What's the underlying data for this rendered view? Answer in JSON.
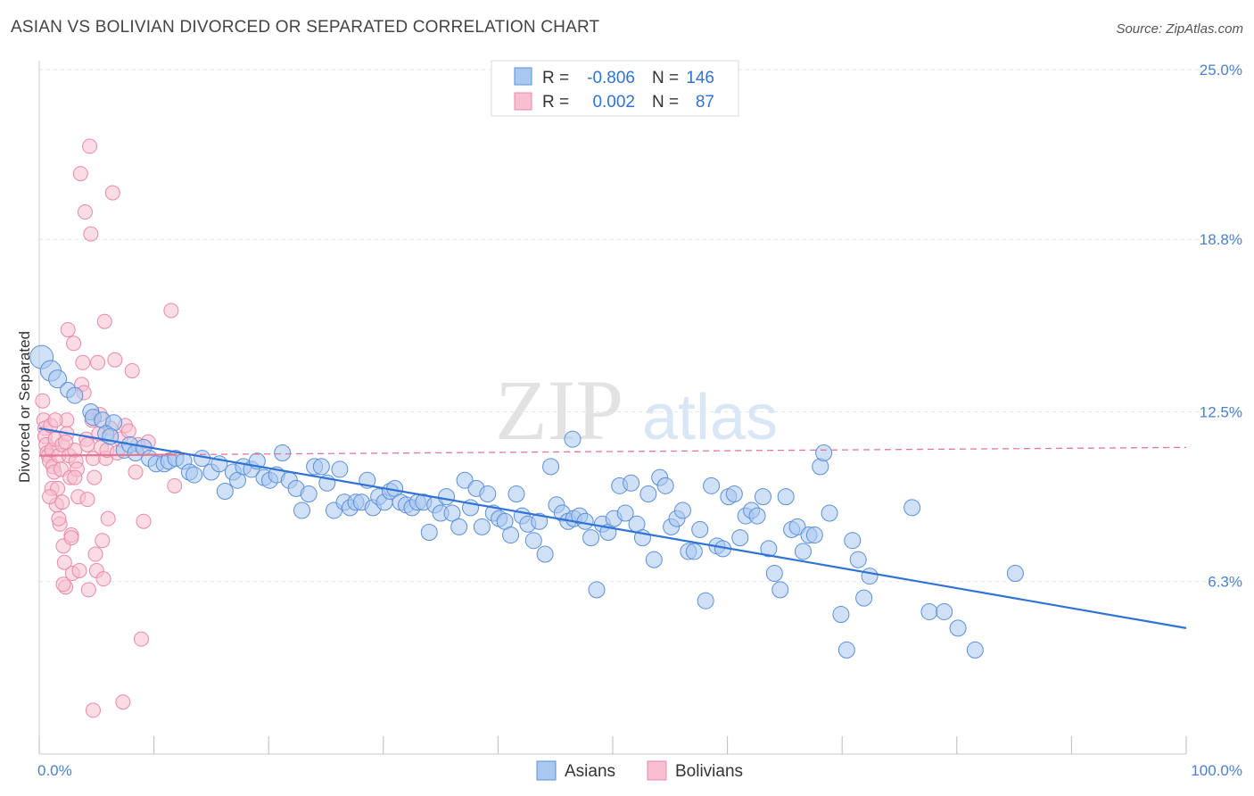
{
  "title": "ASIAN VS BOLIVIAN DIVORCED OR SEPARATED CORRELATION CHART",
  "source": "Source: ZipAtlas.com",
  "watermark": {
    "zip": "ZIP",
    "atlas": "atlas"
  },
  "colors": {
    "asians_fill": "#a9c8f0",
    "asians_stroke": "#5b8fd9",
    "asians_line": "#2f73d4",
    "bolivians_fill": "#f8bfd0",
    "bolivians_stroke": "#e889a8",
    "bolivians_line": "#e07898",
    "tick_text": "#4a7fd4",
    "grid": "#e6e6e6"
  },
  "legend": {
    "rows": [
      {
        "r_label": "R =",
        "r_value": "-0.806",
        "n_label": "N =",
        "n_value": "146"
      },
      {
        "r_label": "R =",
        "r_value": "0.002",
        "n_label": "N =",
        "n_value": "87"
      }
    ]
  },
  "bottom_legend": {
    "asians": "Asians",
    "bolivians": "Bolivians"
  },
  "chart_data": {
    "type": "scatter",
    "xlabel": "",
    "ylabel": "Divorced or Separated",
    "xlim": [
      0,
      100
    ],
    "ylim": [
      0,
      25
    ],
    "y_ticks": [
      {
        "value": 6.3,
        "label": "6.3%"
      },
      {
        "value": 12.5,
        "label": "12.5%"
      },
      {
        "value": 18.8,
        "label": "18.8%"
      },
      {
        "value": 25.0,
        "label": "25.0%"
      }
    ],
    "x_tick_labels": {
      "min": "0.0%",
      "max": "100.0%"
    },
    "x_minor_ticks": [
      0,
      10,
      20,
      30,
      40,
      50,
      60,
      70,
      80,
      90,
      100
    ],
    "grid": true,
    "series": [
      {
        "name": "Asians",
        "R": -0.806,
        "N": 146,
        "trend": {
          "x": [
            0,
            100
          ],
          "y": [
            11.9,
            4.6
          ]
        },
        "points": [
          [
            0.2,
            14.5
          ],
          [
            1.0,
            14.0
          ],
          [
            1.6,
            13.7
          ],
          [
            2.5,
            13.3
          ],
          [
            3.1,
            13.1
          ],
          [
            4.5,
            12.5
          ],
          [
            4.7,
            12.3
          ],
          [
            5.5,
            12.2
          ],
          [
            6.5,
            12.1
          ],
          [
            5.8,
            11.7
          ],
          [
            6.2,
            11.6
          ],
          [
            7.4,
            11.1
          ],
          [
            7.9,
            11.3
          ],
          [
            8.4,
            11.0
          ],
          [
            9.1,
            11.2
          ],
          [
            9.6,
            10.8
          ],
          [
            10.2,
            10.6
          ],
          [
            10.9,
            10.6
          ],
          [
            11.3,
            10.7
          ],
          [
            11.9,
            10.8
          ],
          [
            12.6,
            10.7
          ],
          [
            13.1,
            10.3
          ],
          [
            13.5,
            10.2
          ],
          [
            14.2,
            10.8
          ],
          [
            15.0,
            10.3
          ],
          [
            15.7,
            10.6
          ],
          [
            16.2,
            9.6
          ],
          [
            16.9,
            10.3
          ],
          [
            17.3,
            10.0
          ],
          [
            17.8,
            10.5
          ],
          [
            18.5,
            10.4
          ],
          [
            19.0,
            10.7
          ],
          [
            19.6,
            10.1
          ],
          [
            20.1,
            10.0
          ],
          [
            20.7,
            10.2
          ],
          [
            21.2,
            11.0
          ],
          [
            21.8,
            10.0
          ],
          [
            22.4,
            9.7
          ],
          [
            22.9,
            8.9
          ],
          [
            23.5,
            9.5
          ],
          [
            24.0,
            10.5
          ],
          [
            24.6,
            10.5
          ],
          [
            25.1,
            9.9
          ],
          [
            25.7,
            8.9
          ],
          [
            26.2,
            10.4
          ],
          [
            26.6,
            9.2
          ],
          [
            27.1,
            9.0
          ],
          [
            27.6,
            9.2
          ],
          [
            28.1,
            9.2
          ],
          [
            28.6,
            10.0
          ],
          [
            29.1,
            9.0
          ],
          [
            29.6,
            9.4
          ],
          [
            30.1,
            9.2
          ],
          [
            30.6,
            9.6
          ],
          [
            31.0,
            9.7
          ],
          [
            31.5,
            9.2
          ],
          [
            32.0,
            9.1
          ],
          [
            32.5,
            9.0
          ],
          [
            33.0,
            9.2
          ],
          [
            33.5,
            9.2
          ],
          [
            34.0,
            8.1
          ],
          [
            34.5,
            9.1
          ],
          [
            35.0,
            8.8
          ],
          [
            35.5,
            9.4
          ],
          [
            36.0,
            8.8
          ],
          [
            36.6,
            8.3
          ],
          [
            37.1,
            10.0
          ],
          [
            37.6,
            9.0
          ],
          [
            38.1,
            9.7
          ],
          [
            38.6,
            8.3
          ],
          [
            39.1,
            9.5
          ],
          [
            39.6,
            8.8
          ],
          [
            40.1,
            8.6
          ],
          [
            40.6,
            8.5
          ],
          [
            41.1,
            8.0
          ],
          [
            41.6,
            9.5
          ],
          [
            42.1,
            8.7
          ],
          [
            42.6,
            8.4
          ],
          [
            43.1,
            7.8
          ],
          [
            43.6,
            8.5
          ],
          [
            44.1,
            7.3
          ],
          [
            44.6,
            10.5
          ],
          [
            45.1,
            9.1
          ],
          [
            45.6,
            8.8
          ],
          [
            46.1,
            8.5
          ],
          [
            46.6,
            8.6
          ],
          [
            47.1,
            8.7
          ],
          [
            47.6,
            8.5
          ],
          [
            48.1,
            7.9
          ],
          [
            48.6,
            6.0
          ],
          [
            49.1,
            8.4
          ],
          [
            49.6,
            8.1
          ],
          [
            50.1,
            8.6
          ],
          [
            50.6,
            9.8
          ],
          [
            51.1,
            8.8
          ],
          [
            51.6,
            9.9
          ],
          [
            52.1,
            8.4
          ],
          [
            52.6,
            7.9
          ],
          [
            53.1,
            9.5
          ],
          [
            53.6,
            7.1
          ],
          [
            54.1,
            10.1
          ],
          [
            54.6,
            9.8
          ],
          [
            55.1,
            8.3
          ],
          [
            55.6,
            8.6
          ],
          [
            56.1,
            8.9
          ],
          [
            56.6,
            7.4
          ],
          [
            57.1,
            7.4
          ],
          [
            57.6,
            8.2
          ],
          [
            58.1,
            5.6
          ],
          [
            58.6,
            9.8
          ],
          [
            59.1,
            7.6
          ],
          [
            59.6,
            7.5
          ],
          [
            60.1,
            9.4
          ],
          [
            60.6,
            9.5
          ],
          [
            61.1,
            7.9
          ],
          [
            61.6,
            8.7
          ],
          [
            62.1,
            8.9
          ],
          [
            62.6,
            8.7
          ],
          [
            63.1,
            9.4
          ],
          [
            63.6,
            7.5
          ],
          [
            64.1,
            6.6
          ],
          [
            64.6,
            6.0
          ],
          [
            65.1,
            9.4
          ],
          [
            65.6,
            8.2
          ],
          [
            66.1,
            8.3
          ],
          [
            66.6,
            7.4
          ],
          [
            67.1,
            8.0
          ],
          [
            67.6,
            8.0
          ],
          [
            68.1,
            10.5
          ],
          [
            68.4,
            11.0
          ],
          [
            68.9,
            8.8
          ],
          [
            69.9,
            5.1
          ],
          [
            70.4,
            3.8
          ],
          [
            70.9,
            7.8
          ],
          [
            71.4,
            7.1
          ],
          [
            71.9,
            5.7
          ],
          [
            72.4,
            6.5
          ],
          [
            76.1,
            9.0
          ],
          [
            77.6,
            5.2
          ],
          [
            78.9,
            5.2
          ],
          [
            80.1,
            4.6
          ],
          [
            81.6,
            3.8
          ],
          [
            85.1,
            6.6
          ],
          [
            46.5,
            11.5
          ]
        ]
      },
      {
        "name": "Bolivians",
        "R": 0.002,
        "N": 87,
        "trend": {
          "x": [
            0,
            100
          ],
          "y": [
            10.9,
            11.2
          ]
        },
        "points": [
          [
            0.3,
            12.9
          ],
          [
            0.4,
            12.2
          ],
          [
            0.5,
            11.9
          ],
          [
            0.5,
            11.6
          ],
          [
            0.6,
            11.3
          ],
          [
            0.7,
            11.0
          ],
          [
            0.8,
            10.9
          ],
          [
            0.9,
            10.7
          ],
          [
            1.0,
            12.0
          ],
          [
            1.1,
            11.1
          ],
          [
            1.1,
            9.7
          ],
          [
            1.2,
            10.5
          ],
          [
            1.3,
            10.3
          ],
          [
            1.4,
            11.5
          ],
          [
            1.5,
            9.1
          ],
          [
            1.6,
            9.7
          ],
          [
            1.7,
            10.9
          ],
          [
            1.8,
            8.4
          ],
          [
            1.9,
            10.4
          ],
          [
            2.0,
            11.3
          ],
          [
            2.0,
            9.2
          ],
          [
            2.1,
            7.6
          ],
          [
            2.2,
            7.0
          ],
          [
            2.3,
            6.1
          ],
          [
            2.4,
            12.2
          ],
          [
            2.4,
            11.7
          ],
          [
            2.5,
            15.5
          ],
          [
            2.6,
            10.9
          ],
          [
            2.7,
            10.1
          ],
          [
            2.8,
            8.0
          ],
          [
            2.9,
            6.6
          ],
          [
            3.0,
            15.0
          ],
          [
            3.1,
            11.1
          ],
          [
            3.2,
            10.7
          ],
          [
            3.3,
            10.4
          ],
          [
            3.4,
            9.4
          ],
          [
            3.5,
            6.7
          ],
          [
            3.6,
            21.2
          ],
          [
            3.7,
            13.5
          ],
          [
            3.8,
            14.3
          ],
          [
            3.9,
            13.2
          ],
          [
            4.0,
            19.8
          ],
          [
            4.1,
            11.5
          ],
          [
            4.2,
            11.3
          ],
          [
            4.2,
            9.3
          ],
          [
            4.3,
            6.0
          ],
          [
            4.4,
            22.2
          ],
          [
            4.5,
            19.0
          ],
          [
            4.6,
            12.2
          ],
          [
            4.7,
            10.8
          ],
          [
            4.8,
            10.1
          ],
          [
            4.9,
            7.3
          ],
          [
            5.0,
            6.7
          ],
          [
            5.1,
            14.3
          ],
          [
            5.2,
            11.7
          ],
          [
            5.3,
            12.4
          ],
          [
            5.4,
            11.2
          ],
          [
            5.5,
            7.8
          ],
          [
            5.6,
            6.4
          ],
          [
            5.7,
            15.8
          ],
          [
            5.8,
            10.8
          ],
          [
            5.9,
            11.1
          ],
          [
            6.0,
            8.6
          ],
          [
            6.2,
            11.9
          ],
          [
            6.4,
            20.5
          ],
          [
            6.6,
            14.4
          ],
          [
            6.8,
            11.0
          ],
          [
            7.1,
            11.5
          ],
          [
            7.3,
            1.9
          ],
          [
            7.5,
            12.0
          ],
          [
            7.8,
            11.8
          ],
          [
            8.1,
            14.0
          ],
          [
            8.4,
            10.3
          ],
          [
            8.6,
            11.3
          ],
          [
            8.9,
            4.2
          ],
          [
            9.1,
            8.5
          ],
          [
            9.5,
            11.4
          ],
          [
            11.5,
            16.2
          ],
          [
            11.8,
            9.8
          ],
          [
            2.1,
            6.2
          ],
          [
            4.7,
            1.6
          ],
          [
            2.3,
            11.4
          ],
          [
            3.1,
            10.1
          ],
          [
            1.4,
            12.2
          ],
          [
            0.9,
            9.4
          ],
          [
            1.7,
            8.6
          ],
          [
            2.8,
            7.9
          ]
        ]
      }
    ]
  }
}
